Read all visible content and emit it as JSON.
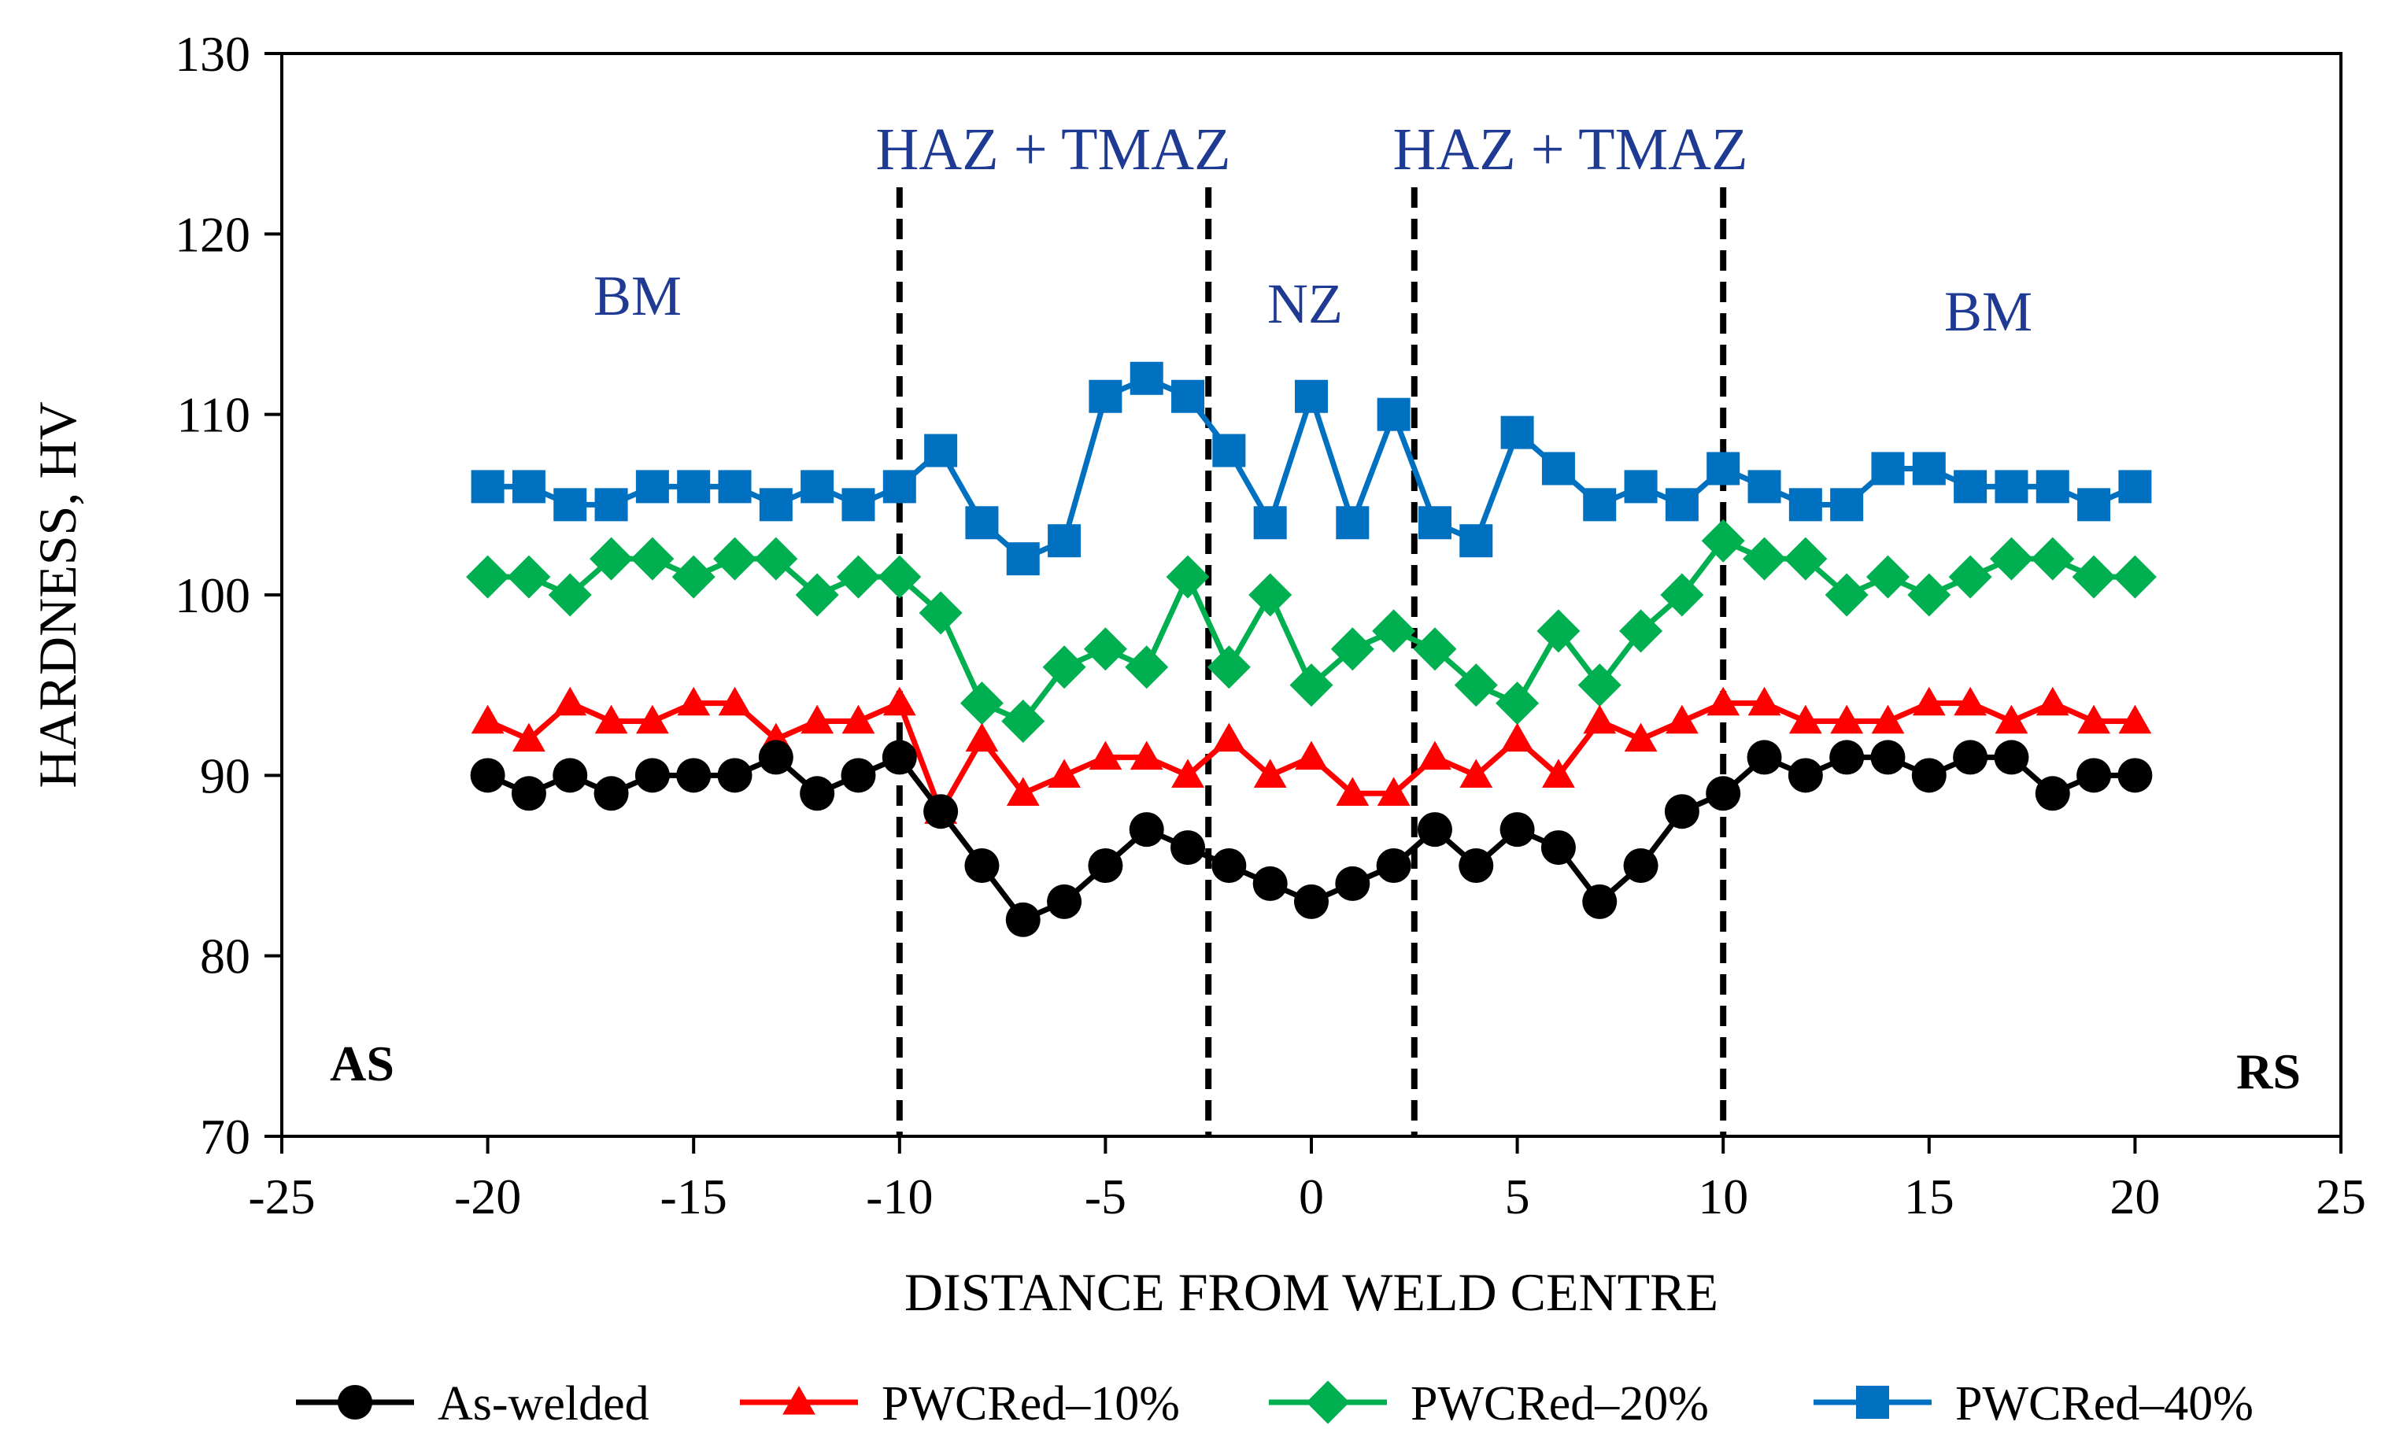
{
  "chart_data": {
    "type": "line",
    "xlabel": "DISTANCE FROM WELD CENTRE",
    "ylabel": "HARDNESS, HV",
    "xlim": [
      -25,
      25
    ],
    "ylim": [
      70,
      130
    ],
    "x_ticks": [
      -25,
      -20,
      -15,
      -10,
      -5,
      0,
      5,
      10,
      15,
      20,
      25
    ],
    "y_ticks": [
      70,
      80,
      90,
      100,
      110,
      120,
      130
    ],
    "grid": false,
    "legend_position": "bottom",
    "x": [
      -20,
      -19,
      -18,
      -17,
      -16,
      -15,
      -14,
      -13,
      -12,
      -11,
      -10,
      -9,
      -8,
      -7,
      -6,
      -5,
      -4,
      -3,
      -2,
      -1,
      0,
      1,
      2,
      3,
      4,
      5,
      6,
      7,
      8,
      9,
      10,
      11,
      12,
      13,
      14,
      15,
      16,
      17,
      18,
      19,
      20
    ],
    "series": [
      {
        "name": "As-welded",
        "color": "#000000",
        "marker": "circle",
        "values": [
          90,
          89,
          90,
          89,
          90,
          90,
          90,
          91,
          89,
          90,
          91,
          88,
          85,
          82,
          83,
          85,
          87,
          86,
          85,
          84,
          83,
          84,
          85,
          87,
          85,
          87,
          86,
          83,
          85,
          88,
          89,
          91,
          90,
          91,
          91,
          90,
          91,
          91,
          89,
          90,
          90
        ]
      },
      {
        "name": "PWCRed–10%",
        "color": "#ff0000",
        "marker": "triangle",
        "values": [
          93,
          92,
          94,
          93,
          93,
          94,
          94,
          92,
          93,
          93,
          94,
          88,
          92,
          89,
          90,
          91,
          91,
          90,
          92,
          90,
          91,
          89,
          89,
          91,
          90,
          92,
          90,
          93,
          92,
          93,
          94,
          94,
          93,
          93,
          93,
          94,
          94,
          93,
          94,
          93,
          93
        ]
      },
      {
        "name": "PWCRed–20%",
        "color": "#00b050",
        "marker": "diamond",
        "values": [
          101,
          101,
          100,
          102,
          102,
          101,
          102,
          102,
          100,
          101,
          101,
          99,
          94,
          93,
          96,
          97,
          96,
          101,
          96,
          100,
          95,
          97,
          98,
          97,
          95,
          94,
          98,
          95,
          98,
          100,
          103,
          102,
          102,
          100,
          101,
          100,
          101,
          102,
          102,
          101,
          101
        ]
      },
      {
        "name": "PWCRed–40%",
        "color": "#0070c0",
        "marker": "square",
        "values": [
          106,
          106,
          105,
          105,
          106,
          106,
          106,
          105,
          106,
          105,
          106,
          108,
          104,
          102,
          103,
          111,
          112,
          111,
          108,
          104,
          111,
          104,
          110,
          104,
          103,
          109,
          107,
          105,
          106,
          105,
          107,
          106,
          105,
          105,
          107,
          107,
          106,
          106,
          106,
          105,
          106
        ]
      }
    ],
    "boundary_lines_x": [
      -10,
      -2.5,
      2.5,
      10
    ],
    "annotations": {
      "bm_left": "BM",
      "haz_left": "HAZ + TMAZ",
      "nz": "NZ",
      "haz_right": "HAZ + TMAZ",
      "bm_right": "BM",
      "as_side": "AS",
      "rs_side": "RS"
    },
    "annotation_colors": {
      "zone_label": "#1f3a93",
      "side_label": "#000000"
    }
  }
}
